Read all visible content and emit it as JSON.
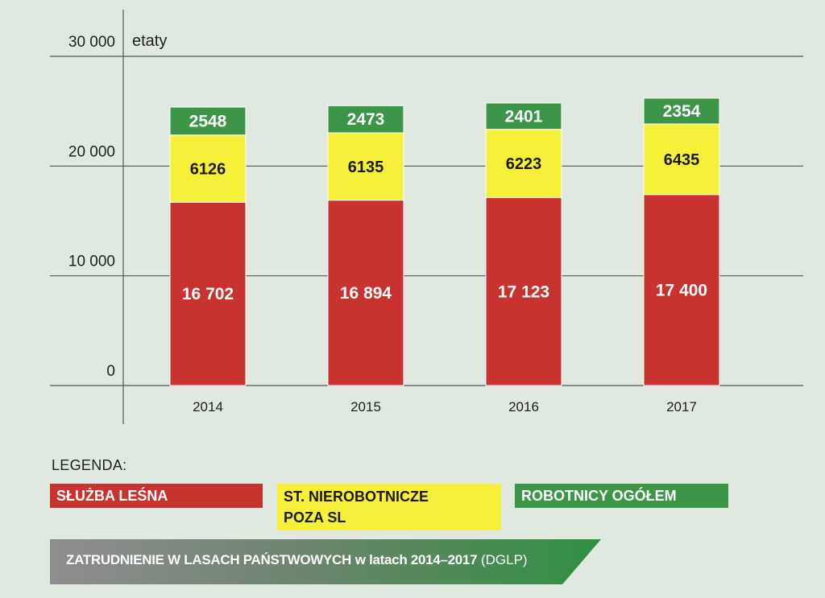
{
  "chart_data": {
    "type": "bar",
    "stacked": true,
    "unit": "etaty",
    "categories": [
      "2014",
      "2015",
      "2016",
      "2017"
    ],
    "series": [
      {
        "name": "SŁUŻBA LEŚNA",
        "color": "#c8322f",
        "values": [
          16702,
          16894,
          17123,
          17400
        ],
        "labels": [
          "16 702",
          "16 894",
          "17 123",
          "17 400"
        ]
      },
      {
        "name": "ST. NIEROBOTNICZE POZA SL",
        "color": "#f7f03b",
        "values": [
          6126,
          6135,
          6223,
          6435
        ],
        "labels": [
          "6126",
          "6135",
          "6223",
          "6435"
        ]
      },
      {
        "name": "ROBOTNICY OGÓŁEM",
        "color": "#3d9648",
        "values": [
          2548,
          2473,
          2401,
          2354
        ],
        "labels": [
          "2548",
          "2473",
          "2401",
          "2354"
        ]
      }
    ],
    "ylim": [
      0,
      30000
    ],
    "yticks": [
      0,
      10000,
      20000,
      30000
    ],
    "ytick_labels": [
      "0",
      "10 000",
      "20 000",
      "30 000"
    ],
    "grid": true
  },
  "legend": {
    "title": "LEGENDA:",
    "items": [
      {
        "label": "SŁUŻBA LEŚNA"
      },
      {
        "label_line1": "ST. NIEROBOTNICZE",
        "label_line2": "POZA SL"
      },
      {
        "label": "ROBOTNICY OGÓŁEM"
      }
    ]
  },
  "caption": {
    "main": "ZATRUDNIENIE W LASACH PAŃSTWOWYCH",
    "sub": "w latach 2014–2017",
    "source": "(DGLP)"
  }
}
